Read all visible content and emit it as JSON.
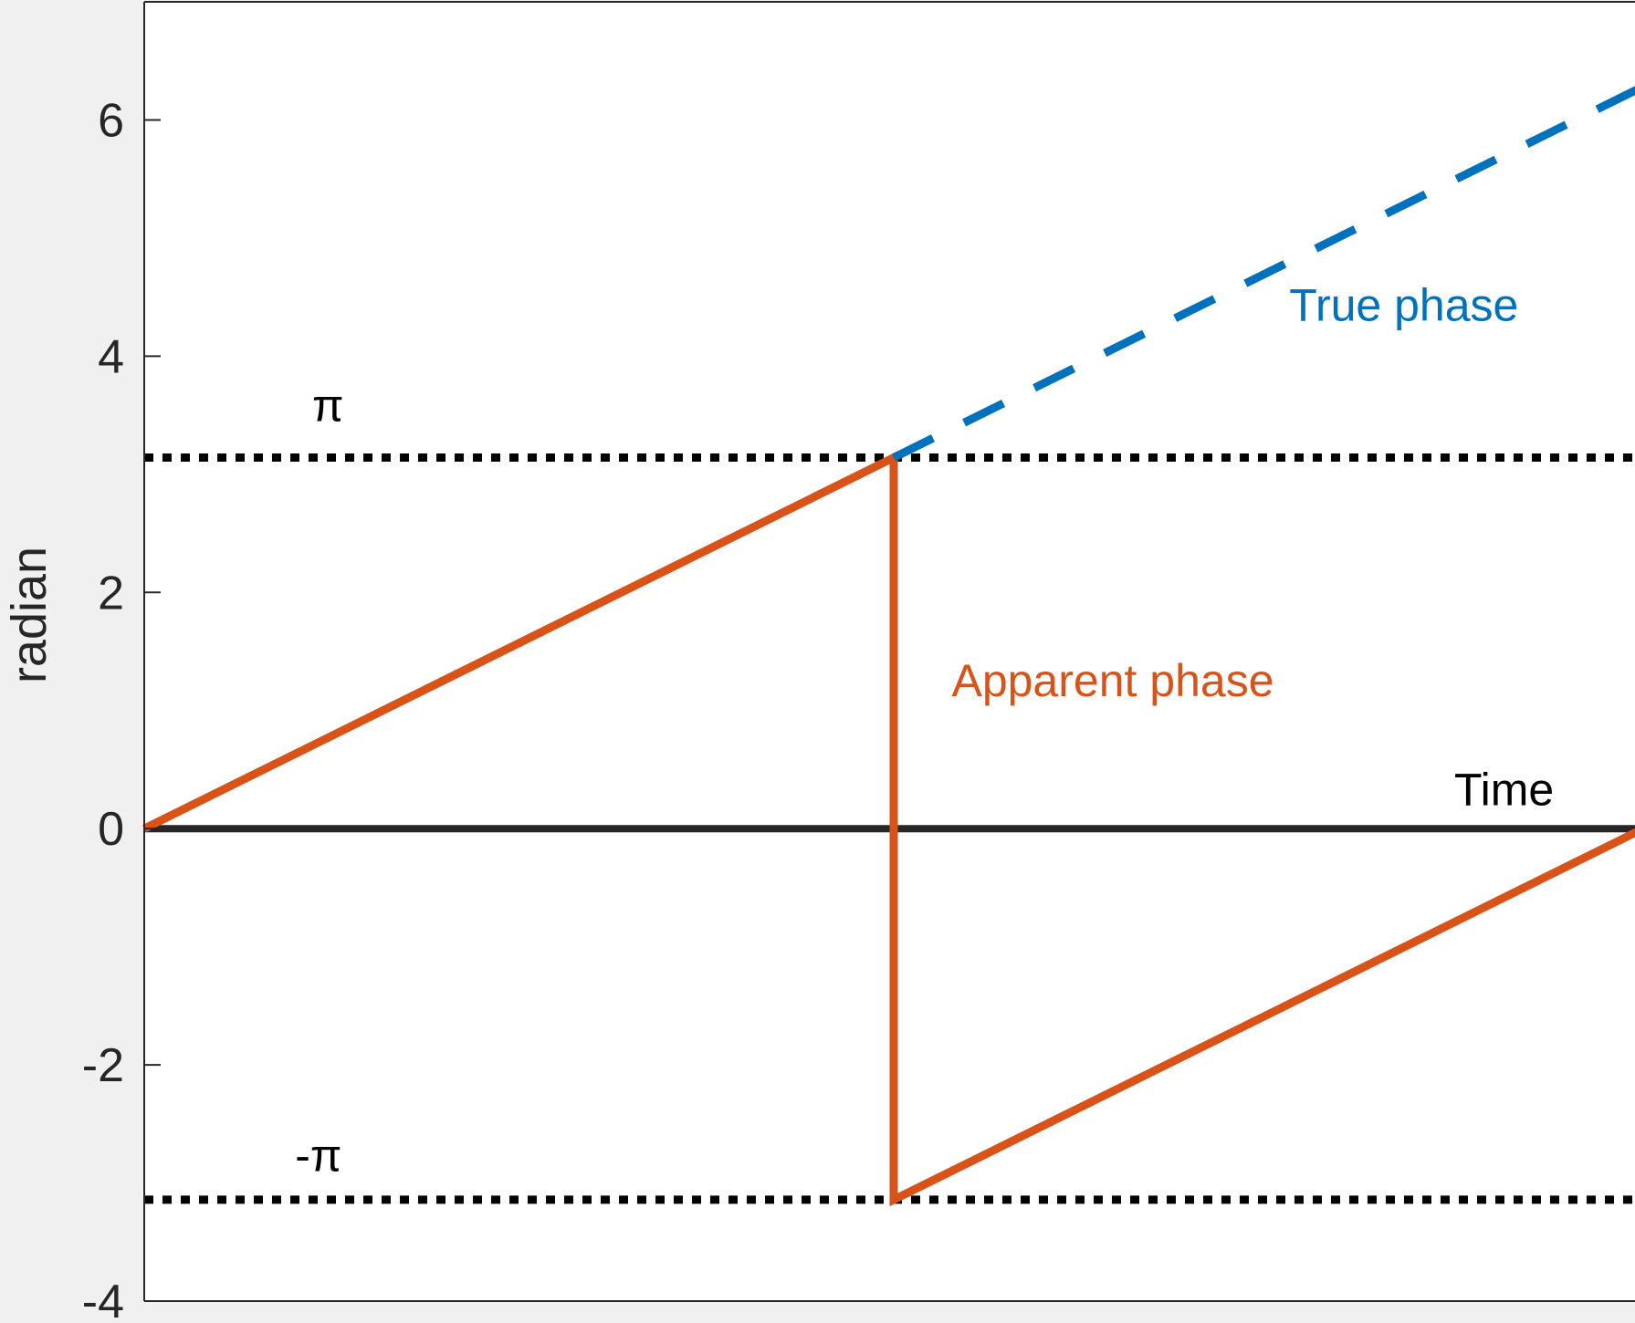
{
  "chart_data": {
    "type": "line",
    "xlabel": "",
    "ylabel": "radian",
    "xlim": [
      0,
      6.2832
    ],
    "ylim": [
      -4,
      7
    ],
    "yticks": [
      -4,
      -2,
      0,
      2,
      4,
      6
    ],
    "grid": false,
    "legend": "none",
    "colors": {
      "true_phase": "#0072bd",
      "apparent_phase": "#d95319",
      "reference": "#000000",
      "zero_axis": "#262626"
    },
    "series": [
      {
        "key": "true_phase",
        "style": "dashed",
        "x": [
          3.1416,
          6.2832
        ],
        "y": [
          3.1416,
          6.2832
        ]
      },
      {
        "key": "apparent_phase",
        "style": "solid",
        "x": [
          0,
          3.1416,
          3.1416,
          6.2832
        ],
        "y": [
          0,
          3.1416,
          -3.1416,
          0
        ]
      },
      {
        "key": "pi_line",
        "style": "dotted",
        "x": [
          0,
          6.2832
        ],
        "y": [
          3.1416,
          3.1416
        ]
      },
      {
        "key": "neg_pi_line",
        "style": "dotted",
        "x": [
          0,
          6.2832
        ],
        "y": [
          -3.1416,
          -3.1416
        ]
      },
      {
        "key": "zero_line",
        "style": "solid",
        "x": [
          0,
          6.2832
        ],
        "y": [
          0,
          0
        ]
      }
    ],
    "annotations": [
      {
        "key": "true_phase_label",
        "text": "True phase",
        "x": 5.28,
        "y": 4.3,
        "color": "#0072bd"
      },
      {
        "key": "apparent_phase_label",
        "text": "Apparent phase",
        "x": 4.06,
        "y": 1.12,
        "color": "#d95319"
      },
      {
        "key": "time_label",
        "text": "Time",
        "x": 5.7,
        "y": 0.2,
        "color": "#000000"
      },
      {
        "key": "pi_label",
        "text": "π",
        "x": 0.77,
        "y": 3.45,
        "color": "#000000"
      },
      {
        "key": "neg_pi_label",
        "text": "-π",
        "x": 0.73,
        "y": -2.9,
        "color": "#000000"
      }
    ]
  }
}
